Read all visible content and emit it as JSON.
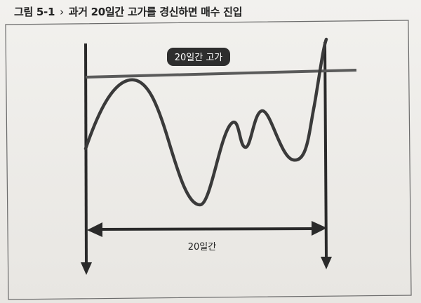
{
  "caption": {
    "number": "그림 5-1",
    "separator": "›",
    "title": "과거 20일간 고가를 경신하면 매수 진입"
  },
  "diagram": {
    "high_label": "20일간 고가",
    "period_label": "20일간",
    "colors": {
      "line": "#3a3a3a",
      "highline": "#5a5a5a",
      "badge_bg": "#2e2e2e",
      "badge_text": "#ffffff",
      "frame": "#555555"
    }
  }
}
